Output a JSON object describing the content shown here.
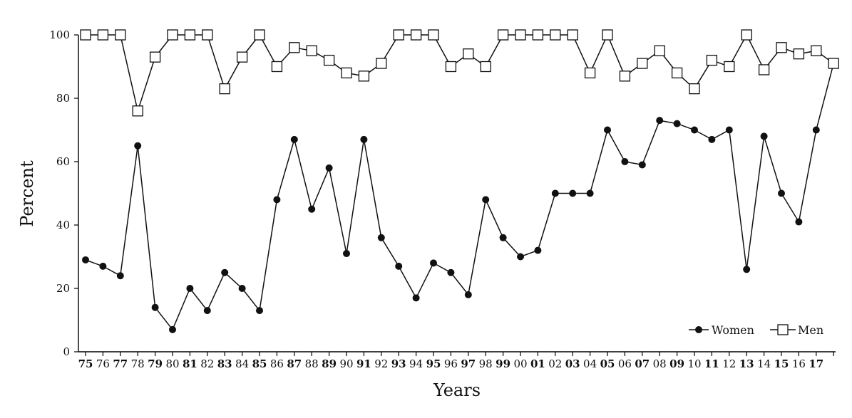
{
  "chart_data": {
    "type": "line",
    "xlabel": "Years",
    "ylabel": "Percent",
    "ylim": [
      0,
      100
    ],
    "yticks": [
      0,
      20,
      40,
      60,
      80,
      100
    ],
    "x": [
      1975,
      1976,
      1977,
      1978,
      1979,
      1980,
      1981,
      1982,
      1983,
      1984,
      1985,
      1986,
      1987,
      1988,
      1989,
      1990,
      1991,
      1992,
      1993,
      1994,
      1995,
      1996,
      1997,
      1998,
      1999,
      2000,
      2001,
      2002,
      2003,
      2004,
      2005,
      2006,
      2007,
      2008,
      2009,
      2010,
      2011,
      2012,
      2013,
      2014,
      2015,
      2016,
      2017,
      2018
    ],
    "x_tick_labels": [
      "75",
      "76",
      "77",
      "78",
      "79",
      "80",
      "81",
      "82",
      "83",
      "84",
      "85",
      "86",
      "87",
      "88",
      "89",
      "90",
      "91",
      "92",
      "93",
      "94",
      "95",
      "96",
      "97",
      "98",
      "99",
      "00",
      "01",
      "02",
      "03",
      "04",
      "05",
      "06",
      "07",
      "08",
      "09",
      "10",
      "11",
      "12",
      "13",
      "14",
      "15",
      "16",
      "17",
      ""
    ],
    "x_tick_bold": [
      true,
      false,
      true,
      false,
      true,
      false,
      true,
      false,
      true,
      false,
      true,
      false,
      true,
      false,
      true,
      false,
      true,
      false,
      true,
      false,
      true,
      false,
      true,
      false,
      true,
      false,
      true,
      false,
      true,
      false,
      true,
      false,
      true,
      false,
      true,
      false,
      true,
      false,
      true,
      false,
      true,
      false,
      true,
      false
    ],
    "series": [
      {
        "name": "Women",
        "marker": "filled-circle",
        "values": [
          29,
          27,
          24,
          65,
          14,
          7,
          20,
          13,
          25,
          20,
          13,
          48,
          67,
          45,
          58,
          31,
          67,
          36,
          27,
          17,
          28,
          25,
          18,
          48,
          36,
          30,
          32,
          50,
          50,
          50,
          70,
          60,
          59,
          73,
          72,
          70,
          67,
          70,
          26,
          68,
          50,
          41,
          70,
          91
        ]
      },
      {
        "name": "Men",
        "marker": "open-square",
        "values": [
          100,
          100,
          100,
          76,
          93,
          100,
          100,
          100,
          83,
          93,
          100,
          90,
          96,
          95,
          92,
          88,
          87,
          91,
          100,
          100,
          100,
          90,
          94,
          90,
          100,
          100,
          100,
          100,
          100,
          88,
          100,
          87,
          91,
          95,
          88,
          83,
          92,
          90,
          100,
          89,
          96,
          94,
          95,
          91
        ]
      }
    ],
    "legend": "bottom-right",
    "grid": false
  }
}
